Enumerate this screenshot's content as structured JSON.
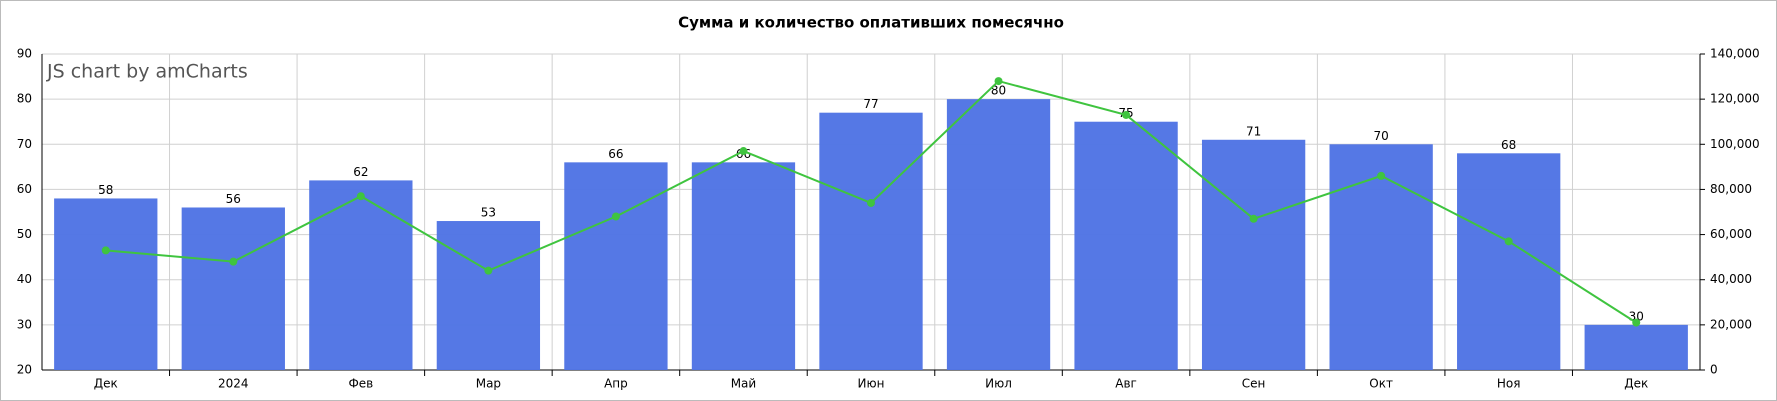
{
  "chart_data": {
    "type": "bar_line",
    "title": "Сумма и количество оплативших помесячно",
    "watermark": "JS chart by amCharts",
    "categories": [
      "Дек",
      "2024",
      "Фев",
      "Мар",
      "Апр",
      "Май",
      "Июн",
      "Июл",
      "Авг",
      "Сен",
      "Окт",
      "Ноя",
      "Дек"
    ],
    "series": [
      {
        "type": "bar",
        "color": "#5074e4",
        "values": [
          58,
          56,
          62,
          53,
          66,
          66,
          77,
          80,
          75,
          71,
          70,
          68,
          30
        ]
      },
      {
        "type": "line",
        "axis": "y2",
        "color": "#3fc43f",
        "values": [
          53000,
          48000,
          77000,
          44000,
          68000,
          97000,
          74000,
          128000,
          113000,
          67000,
          86000,
          57000,
          21000
        ]
      }
    ],
    "ylim": [
      20,
      90
    ],
    "yticks": [
      20,
      30,
      40,
      50,
      60,
      70,
      80,
      90
    ],
    "y2lim": [
      0,
      140000
    ],
    "y2ticks": [
      0,
      {
        "value": 20000,
        "label": "20,000"
      },
      {
        "value": 40000,
        "label": "40,000"
      },
      {
        "value": 60000,
        "label": "60,000"
      },
      {
        "value": 80000,
        "label": "80,000"
      },
      {
        "value": 100000,
        "label": "100,000"
      },
      {
        "value": 120000,
        "label": "120,000"
      },
      {
        "value": 140000,
        "label": "140,000"
      }
    ],
    "grid": true
  }
}
